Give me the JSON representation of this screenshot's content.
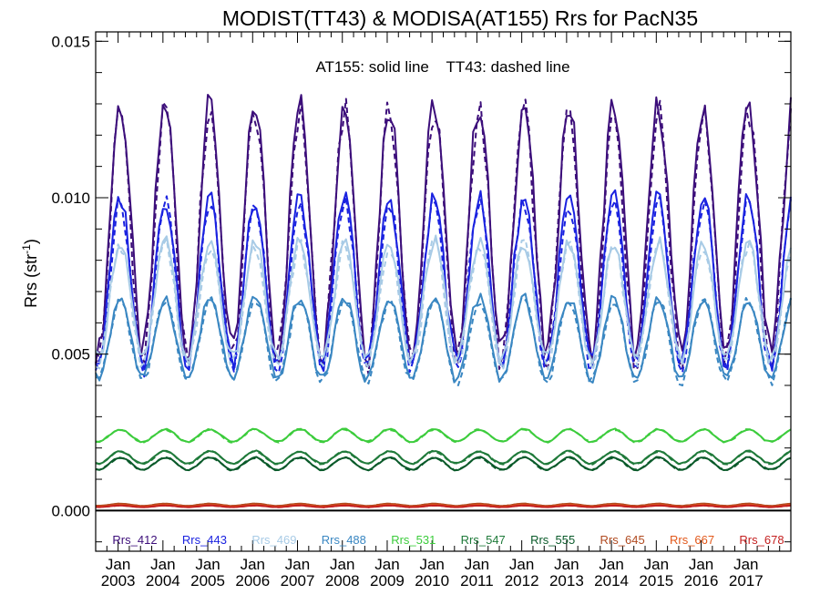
{
  "chart_data": {
    "type": "line",
    "title": "MODIST(TT43) & MODISA(AT155)  Rrs for PacN35",
    "ylabel_main": "Rrs (str",
    "ylabel_sup": "-1",
    "ylabel_end": ")",
    "annotation": "AT155: solid line    TT43: dashed line",
    "y_range": [
      -0.0013,
      0.0153
    ],
    "x_range": [
      2002.5,
      2018.0
    ],
    "y_ticks": [
      {
        "value": 0.0,
        "label": "0.000"
      },
      {
        "value": 0.005,
        "label": "0.005"
      },
      {
        "value": 0.01,
        "label": "0.010"
      },
      {
        "value": 0.015,
        "label": "0.015"
      }
    ],
    "x_ticks": [
      {
        "value": 2003,
        "top": "Jan",
        "bottom": "2003"
      },
      {
        "value": 2004,
        "top": "Jan",
        "bottom": "2004"
      },
      {
        "value": 2005,
        "top": "Jan",
        "bottom": "2005"
      },
      {
        "value": 2006,
        "top": "Jan",
        "bottom": "2006"
      },
      {
        "value": 2007,
        "top": "Jan",
        "bottom": "2007"
      },
      {
        "value": 2008,
        "top": "Jan",
        "bottom": "2008"
      },
      {
        "value": 2009,
        "top": "Jan",
        "bottom": "2009"
      },
      {
        "value": 2010,
        "top": "Jan",
        "bottom": "2010"
      },
      {
        "value": 2011,
        "top": "Jan",
        "bottom": "2011"
      },
      {
        "value": 2012,
        "top": "Jan",
        "bottom": "2012"
      },
      {
        "value": 2013,
        "top": "Jan",
        "bottom": "2013"
      },
      {
        "value": 2014,
        "top": "Jan",
        "bottom": "2014"
      },
      {
        "value": 2015,
        "top": "Jan",
        "bottom": "2015"
      },
      {
        "value": 2016,
        "top": "Jan",
        "bottom": "2016"
      },
      {
        "value": 2017,
        "top": "Jan",
        "bottom": "2017"
      }
    ],
    "zero_line": 0.0,
    "time_start": 2002.5,
    "time_end": 2018.0,
    "time_step_months": 1,
    "seasonal_model": "peak in winter (Jan), minimum in summer (Jul); values: winter max / summer min",
    "series": [
      {
        "name": "Rrs_412",
        "color": "#3c0e7a",
        "max": 0.013,
        "min": 0.005
      },
      {
        "name": "Rrs_443",
        "color": "#1a22e0",
        "max": 0.01,
        "min": 0.0047
      },
      {
        "name": "Rrs_469",
        "color": "#a8cbe6",
        "max": 0.0086,
        "min": 0.0048
      },
      {
        "name": "Rrs_488",
        "color": "#3a87c2",
        "max": 0.0068,
        "min": 0.0042
      },
      {
        "name": "Rrs_531",
        "color": "#3ccc3c",
        "max": 0.0026,
        "min": 0.0022
      },
      {
        "name": "Rrs_547",
        "color": "#1f7a3a",
        "max": 0.0019,
        "min": 0.0015
      },
      {
        "name": "Rrs_555",
        "color": "#0a5a2a",
        "max": 0.0017,
        "min": 0.0013
      },
      {
        "name": "Rrs_645",
        "color": "#b04a20",
        "max": 0.00022,
        "min": 0.00015
      },
      {
        "name": "Rrs_667",
        "color": "#e2581a",
        "max": 0.00018,
        "min": 0.00012
      },
      {
        "name": "Rrs_678",
        "color": "#c42020",
        "max": 0.00016,
        "min": 0.00011
      }
    ]
  }
}
